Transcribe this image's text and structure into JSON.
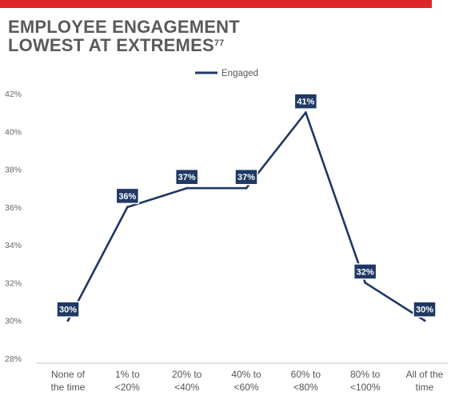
{
  "header": {
    "title_line1": "EMPLOYEE ENGAGEMENT",
    "title_line2": "LOWEST AT EXTREMES",
    "footnote_ref": "77"
  },
  "colors": {
    "accent_bar": "#e0242c",
    "series_line": "#1f3864",
    "label_box": "#1f3864",
    "title_text": "#5a5a5a"
  },
  "chart_data": {
    "type": "line",
    "title": "EMPLOYEE ENGAGEMENT LOWEST AT EXTREMES",
    "xlabel": "",
    "ylabel": "",
    "categories": [
      [
        "None of",
        "the time"
      ],
      [
        "1% to",
        "<20%"
      ],
      [
        "20% to",
        "<40%"
      ],
      [
        "40% to",
        "<60%"
      ],
      [
        "60% to",
        "<80%"
      ],
      [
        "80% to",
        "<100%"
      ],
      [
        "All of the",
        "time"
      ]
    ],
    "series": [
      {
        "name": "Engaged",
        "values": [
          30,
          36,
          37,
          37,
          41,
          32,
          30
        ],
        "labels": [
          "30%",
          "36%",
          "37%",
          "37%",
          "41%",
          "32%",
          "30%"
        ]
      }
    ],
    "ylim": [
      28,
      42
    ],
    "yticks": [
      28,
      30,
      32,
      34,
      36,
      38,
      40,
      42
    ],
    "ytick_labels": [
      "28%",
      "30%",
      "32%",
      "34%",
      "36%",
      "38%",
      "40%",
      "42%"
    ],
    "legend": "top-center",
    "grid": false
  }
}
